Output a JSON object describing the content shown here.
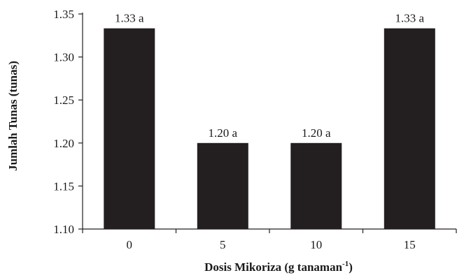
{
  "chart_data": {
    "type": "bar",
    "categories": [
      "0",
      "5",
      "10",
      "15"
    ],
    "values": [
      1.3333,
      1.2,
      1.2,
      1.3333
    ],
    "data_labels": [
      "1.33 a",
      "1.20 a",
      "1.20 a",
      "1.33 a"
    ],
    "xlabel": "Dosis Mikoriza (g tanaman",
    "xlabel_superscript": "-1",
    "xlabel_suffix": ")",
    "ylabel": "Jumlah Tunas (tunas)",
    "ylim": [
      1.1,
      1.35
    ],
    "yticks": [
      "1.10",
      "1.15",
      "1.20",
      "1.25",
      "1.30",
      "1.35"
    ],
    "bar_color": "#231f20",
    "axis_color": "#231f20",
    "grid": false,
    "legend": "none"
  }
}
